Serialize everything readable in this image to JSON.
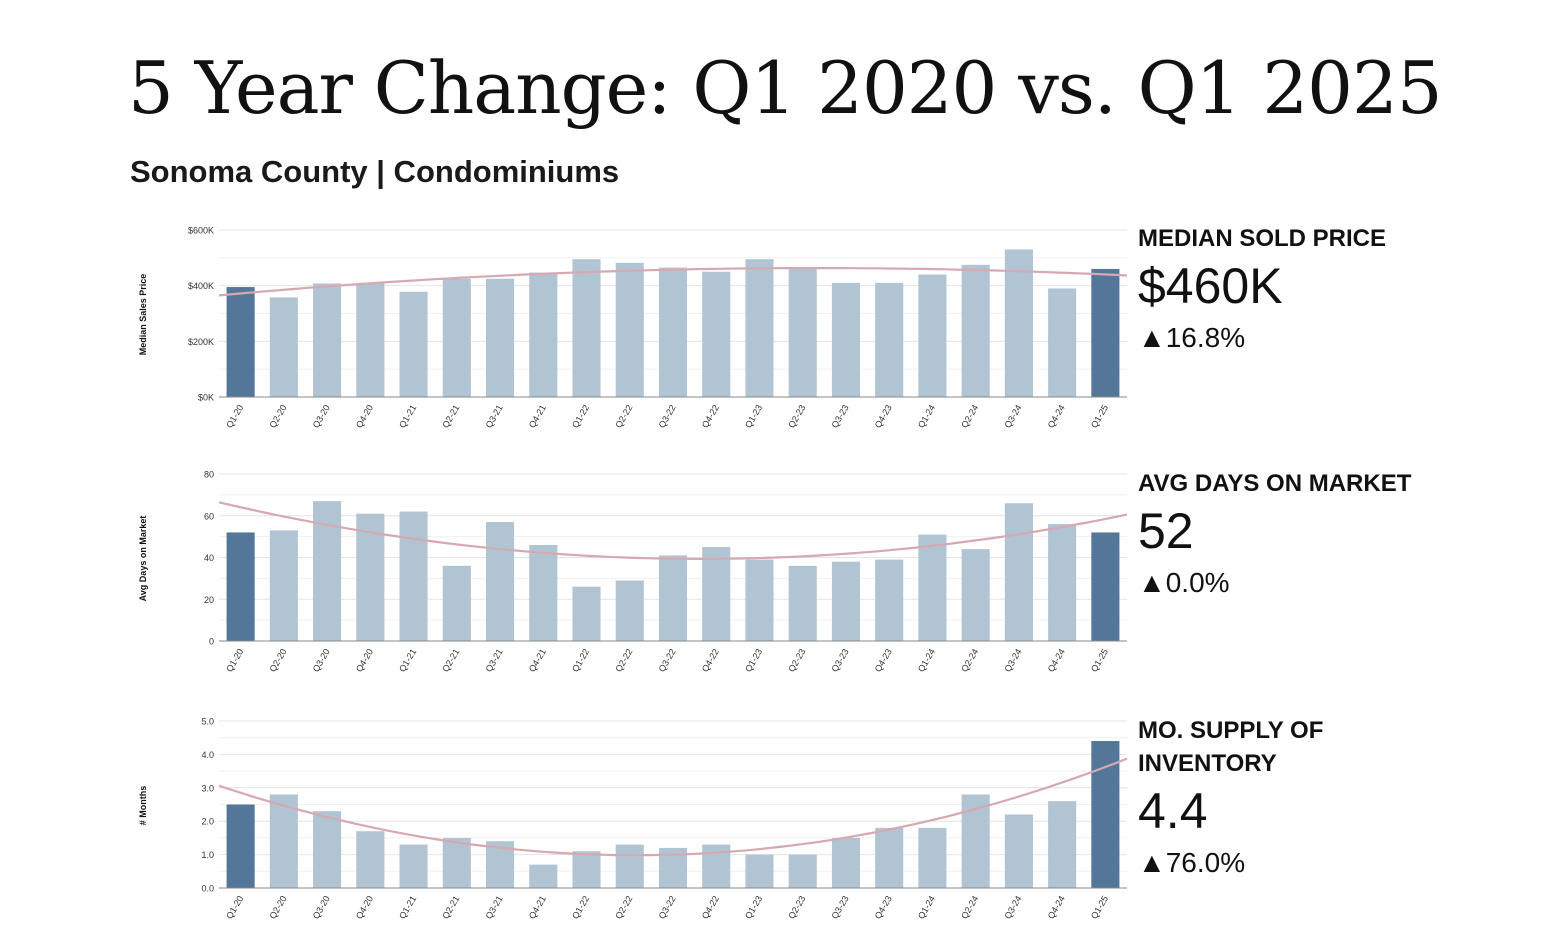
{
  "title": "5 Year Change: Q1 2020 vs. Q1 2025",
  "subtitle": "Sonoma County | Condominiums",
  "colors": {
    "bar_default": "#b1c4d4",
    "bar_highlight": "#547698",
    "trend_line": "#d6a9b1",
    "grid": "#e4e4e4",
    "axis": "#888888"
  },
  "stats": [
    {
      "label": "MEDIAN SOLD PRICE",
      "value": "$460K",
      "change": "▲16.8%"
    },
    {
      "label": "AVG DAYS ON MARKET",
      "value": "52",
      "change": "▲0.0%"
    },
    {
      "label": "MO. SUPPLY OF INVENTORY",
      "value": "4.4",
      "change": "▲76.0%"
    }
  ],
  "chart_data": [
    {
      "type": "bar",
      "ylabel": "Median Sales Price",
      "categories": [
        "Q1-20",
        "Q2-20",
        "Q3-20",
        "Q4-20",
        "Q1-21",
        "Q2-21",
        "Q3-21",
        "Q4-21",
        "Q1-22",
        "Q2-22",
        "Q3-22",
        "Q4-22",
        "Q1-23",
        "Q2-23",
        "Q3-23",
        "Q4-23",
        "Q1-24",
        "Q2-24",
        "Q3-24",
        "Q4-24",
        "Q1-25"
      ],
      "values": [
        395000,
        358000,
        408000,
        410000,
        378000,
        425000,
        425000,
        447000,
        495000,
        482000,
        465000,
        450000,
        495000,
        465000,
        410000,
        410000,
        440000,
        475000,
        530000,
        390000,
        460000
      ],
      "highlight": [
        "Q1-20",
        "Q1-25"
      ],
      "ylim": [
        0,
        600000
      ],
      "ticks": [
        0,
        200000,
        400000,
        600000
      ],
      "tick_labels": [
        "$0K",
        "$200K",
        "$400K",
        "$600K"
      ],
      "trendline": "quadratic",
      "grid": true
    },
    {
      "type": "bar",
      "ylabel": "Avg Days on Market",
      "categories": [
        "Q1-20",
        "Q2-20",
        "Q3-20",
        "Q4-20",
        "Q1-21",
        "Q2-21",
        "Q3-21",
        "Q4-21",
        "Q1-22",
        "Q2-22",
        "Q3-22",
        "Q4-22",
        "Q1-23",
        "Q2-23",
        "Q3-23",
        "Q4-23",
        "Q1-24",
        "Q2-24",
        "Q3-24",
        "Q4-24",
        "Q1-25"
      ],
      "values": [
        52,
        53,
        67,
        61,
        62,
        36,
        57,
        46,
        26,
        29,
        41,
        45,
        39,
        36,
        38,
        39,
        51,
        44,
        66,
        56,
        52
      ],
      "highlight": [
        "Q1-20",
        "Q1-25"
      ],
      "ylim": [
        0,
        80
      ],
      "ticks": [
        0,
        20,
        40,
        60,
        80
      ],
      "tick_labels": [
        "0",
        "20",
        "40",
        "60",
        "80"
      ],
      "trendline": "quadratic",
      "grid": true
    },
    {
      "type": "bar",
      "ylabel": "# Months",
      "categories": [
        "Q1-20",
        "Q2-20",
        "Q3-20",
        "Q4-20",
        "Q1-21",
        "Q2-21",
        "Q3-21",
        "Q4-21",
        "Q1-22",
        "Q2-22",
        "Q3-22",
        "Q4-22",
        "Q1-23",
        "Q2-23",
        "Q3-23",
        "Q4-23",
        "Q1-24",
        "Q2-24",
        "Q3-24",
        "Q4-24",
        "Q1-25"
      ],
      "values": [
        2.5,
        2.8,
        2.3,
        1.7,
        1.3,
        1.5,
        1.4,
        0.7,
        1.1,
        1.3,
        1.2,
        1.3,
        1.0,
        1.0,
        1.5,
        1.8,
        1.8,
        2.8,
        2.2,
        2.6,
        4.4
      ],
      "highlight": [
        "Q1-20",
        "Q1-25"
      ],
      "ylim": [
        0,
        5
      ],
      "ticks": [
        0,
        1,
        2,
        3,
        4,
        5
      ],
      "tick_labels": [
        "0.0",
        "1.0",
        "2.0",
        "3.0",
        "4.0",
        "5.0"
      ],
      "trendline": "quadratic",
      "grid": true
    }
  ]
}
